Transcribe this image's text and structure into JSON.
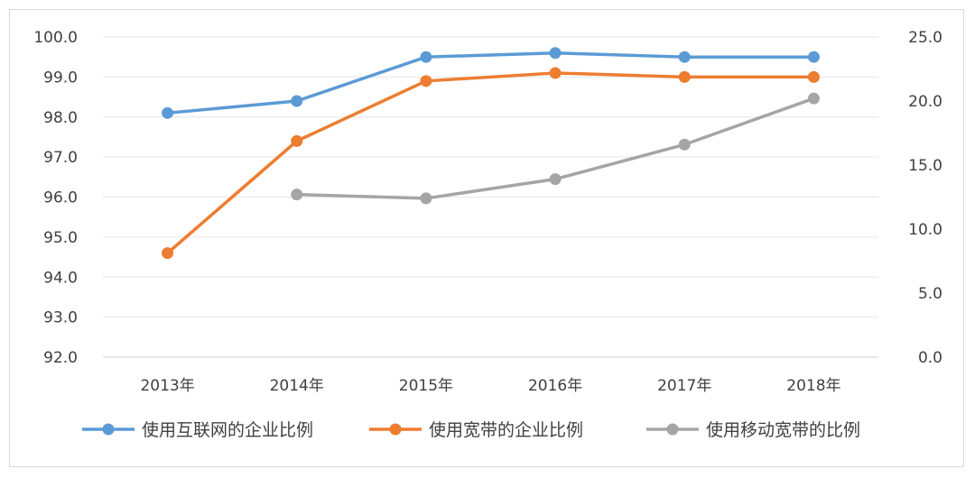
{
  "chart_data": {
    "type": "line",
    "categories": [
      "2013年",
      "2014年",
      "2015年",
      "2016年",
      "2017年",
      "2018年"
    ],
    "y_left": {
      "min": 92.0,
      "max": 100.0,
      "ticks": [
        "92.0",
        "93.0",
        "94.0",
        "95.0",
        "96.0",
        "97.0",
        "98.0",
        "99.0",
        "100.0"
      ]
    },
    "y_right": {
      "min": 0.0,
      "max": 25.0,
      "ticks": [
        "0.0",
        "5.0",
        "10.0",
        "15.0",
        "20.0",
        "25.0"
      ]
    },
    "grid": true,
    "legend_position": "bottom",
    "series": [
      {
        "name": "使用互联网的企业比例",
        "axis": "left",
        "color": "#5b9bd5",
        "values": [
          98.1,
          98.4,
          99.5,
          99.6,
          99.5,
          99.5
        ]
      },
      {
        "name": "使用宽带的企业比例",
        "axis": "left",
        "color": "#ed7d31",
        "values": [
          94.6,
          97.4,
          98.9,
          99.1,
          99.0,
          99.0
        ]
      },
      {
        "name": "使用移动宽带的比例",
        "axis": "right",
        "color": "#a5a5a5",
        "values": [
          null,
          12.7,
          12.4,
          13.9,
          16.6,
          20.2
        ]
      }
    ]
  }
}
